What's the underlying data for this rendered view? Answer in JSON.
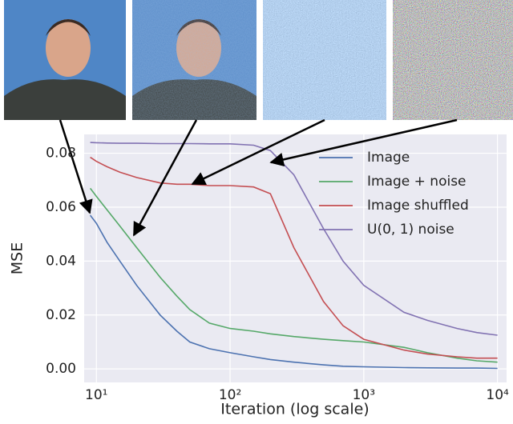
{
  "chart_data": {
    "type": "line",
    "x_label": "Iteration (log scale)",
    "y_label": "MSE",
    "x_scale": "log",
    "grid": true,
    "legend_position": "upper right",
    "xlim": [
      8.1,
      11700
    ],
    "ylim": [
      -0.005,
      0.087
    ],
    "xticks": [
      {
        "value": 10,
        "label": "10¹"
      },
      {
        "value": 100,
        "label": "10²"
      },
      {
        "value": 1000,
        "label": "10³"
      },
      {
        "value": 10000,
        "label": "10⁴"
      }
    ],
    "yticks": [
      {
        "value": 0,
        "label": "0.00"
      },
      0.02,
      0.04,
      0.06,
      0.08
    ],
    "x": [
      9,
      10,
      12,
      15,
      20,
      30,
      40,
      50,
      70,
      100,
      150,
      200,
      300,
      500,
      700,
      1000,
      2000,
      3000,
      5000,
      7000,
      10000
    ],
    "series": [
      {
        "name": "Image",
        "color": "#4c72b0",
        "values": [
          0.057,
          0.054,
          0.047,
          0.04,
          0.031,
          0.02,
          0.014,
          0.01,
          0.0075,
          0.006,
          0.0045,
          0.0035,
          0.0025,
          0.0015,
          0.001,
          0.0008,
          0.0005,
          0.0004,
          0.0003,
          0.0003,
          0.0002
        ]
      },
      {
        "name": "Image + noise",
        "color": "#55a868",
        "values": [
          0.067,
          0.064,
          0.059,
          0.053,
          0.045,
          0.034,
          0.027,
          0.022,
          0.017,
          0.015,
          0.014,
          0.013,
          0.012,
          0.011,
          0.0105,
          0.01,
          0.008,
          0.006,
          0.004,
          0.003,
          0.0025
        ]
      },
      {
        "name": "Image shuffled",
        "color": "#c44e52",
        "values": [
          0.0785,
          0.077,
          0.075,
          0.073,
          0.071,
          0.069,
          0.0685,
          0.0685,
          0.068,
          0.068,
          0.0675,
          0.065,
          0.045,
          0.025,
          0.016,
          0.011,
          0.007,
          0.0055,
          0.0045,
          0.004,
          0.004
        ]
      },
      {
        "name": "U(0, 1) noise",
        "color": "#8172b2",
        "values": [
          0.084,
          0.0839,
          0.0838,
          0.0837,
          0.0837,
          0.0836,
          0.0836,
          0.0836,
          0.0835,
          0.0835,
          0.083,
          0.081,
          0.072,
          0.052,
          0.04,
          0.031,
          0.021,
          0.018,
          0.015,
          0.0135,
          0.0125
        ]
      }
    ]
  }
}
